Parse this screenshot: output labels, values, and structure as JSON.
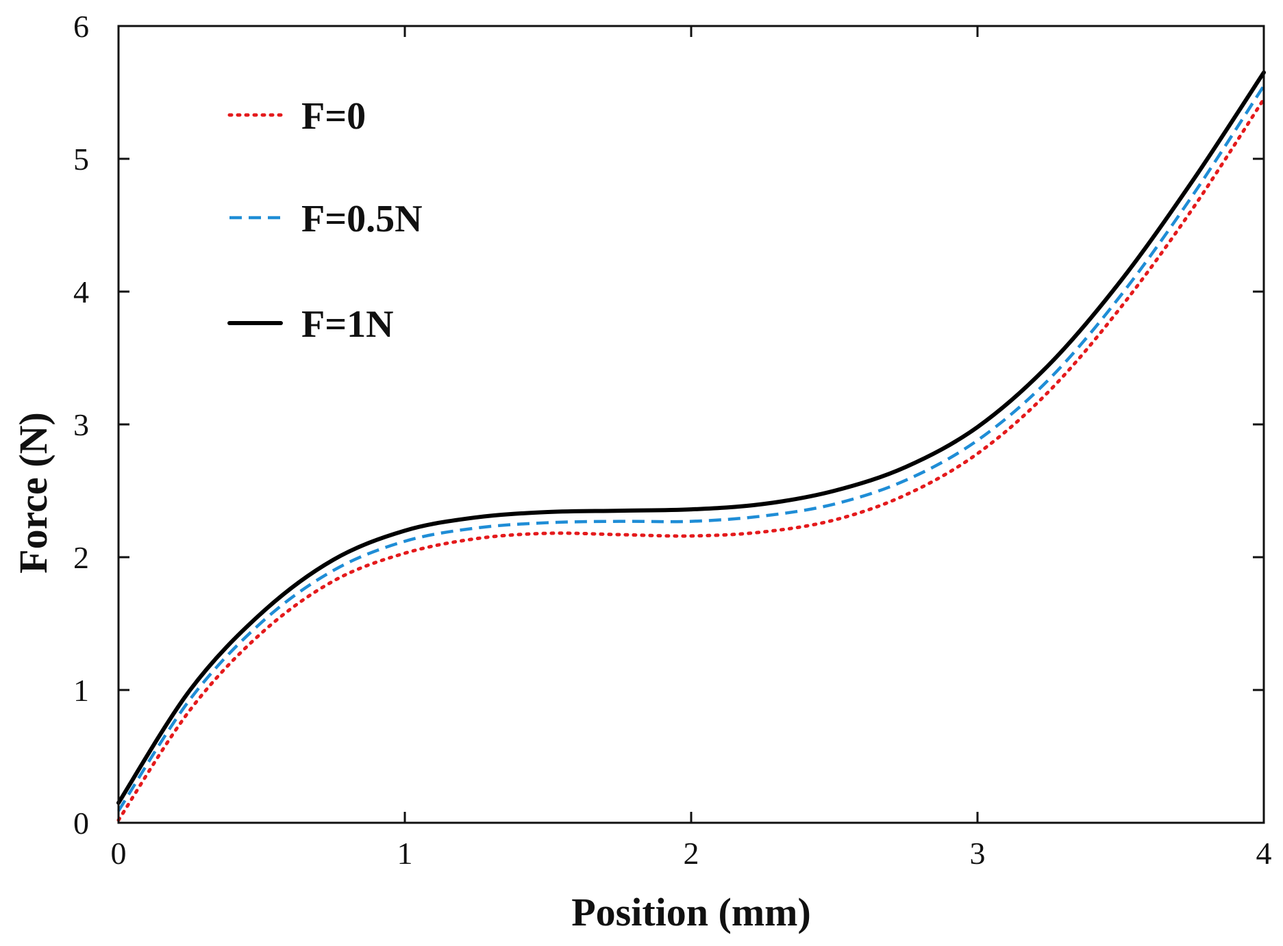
{
  "chart_data": {
    "type": "line",
    "title": "",
    "xlabel": "Position (mm)",
    "ylabel": "Force (N)",
    "xlim": [
      0,
      4
    ],
    "ylim": [
      0,
      6
    ],
    "xticks": [
      0,
      1,
      2,
      3,
      4
    ],
    "yticks": [
      0,
      1,
      2,
      3,
      4,
      5,
      6
    ],
    "xtick_labels": [
      "0",
      "1",
      "2",
      "3",
      "4"
    ],
    "ytick_labels": [
      "0",
      "1",
      "2",
      "3",
      "4",
      "5",
      "6"
    ],
    "grid": false,
    "legend_position": "top-left",
    "series": [
      {
        "name": "F=0",
        "color": "#e41a1c",
        "style": "dotted",
        "x": [
          0,
          0.25,
          0.5,
          0.75,
          1.0,
          1.25,
          1.5,
          1.75,
          2.0,
          2.25,
          2.5,
          2.75,
          3.0,
          3.25,
          3.5,
          3.75,
          4.0
        ],
        "y": [
          0.02,
          0.85,
          1.43,
          1.82,
          2.03,
          2.14,
          2.18,
          2.17,
          2.16,
          2.19,
          2.28,
          2.47,
          2.78,
          3.25,
          3.88,
          4.62,
          5.45
        ]
      },
      {
        "name": "F=0.5N",
        "color": "#1f8dd6",
        "style": "dashed",
        "x": [
          0,
          0.25,
          0.5,
          0.75,
          1.0,
          1.25,
          1.5,
          1.75,
          2.0,
          2.25,
          2.5,
          2.75,
          3.0,
          3.25,
          3.5,
          3.75,
          4.0
        ],
        "y": [
          0.09,
          0.93,
          1.51,
          1.9,
          2.12,
          2.22,
          2.26,
          2.27,
          2.27,
          2.31,
          2.4,
          2.58,
          2.88,
          3.34,
          3.97,
          4.72,
          5.55
        ]
      },
      {
        "name": "F=1N",
        "color": "#000000",
        "style": "solid",
        "x": [
          0,
          0.25,
          0.5,
          0.75,
          1.0,
          1.25,
          1.5,
          1.75,
          2.0,
          2.25,
          2.5,
          2.75,
          3.0,
          3.25,
          3.5,
          3.75,
          4.0
        ],
        "y": [
          0.15,
          1.0,
          1.58,
          1.98,
          2.2,
          2.3,
          2.34,
          2.35,
          2.36,
          2.4,
          2.5,
          2.68,
          2.98,
          3.45,
          4.08,
          4.83,
          5.65
        ]
      }
    ]
  }
}
